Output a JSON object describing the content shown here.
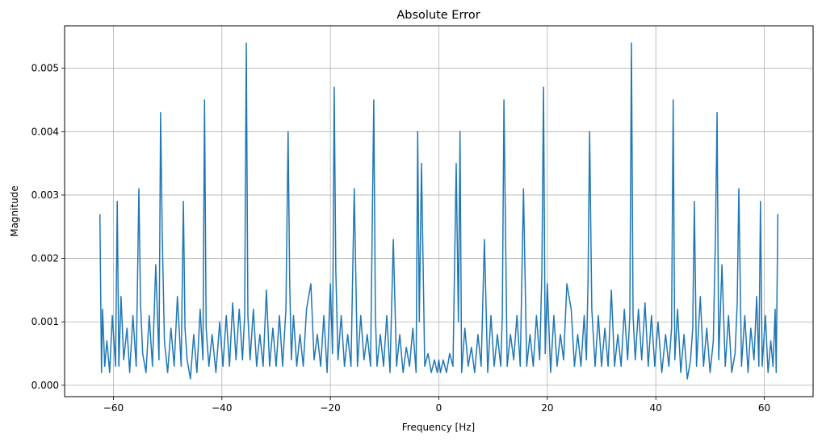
{
  "chart_data": {
    "type": "line",
    "title": "Absolute Error",
    "xlabel": "Frequency [Hz]",
    "ylabel": "Magnitude",
    "xlim": [
      -69,
      69
    ],
    "ylim": [
      -0.00018,
      0.00567
    ],
    "grid": true,
    "line_color": "#1f77b4",
    "x_ticks": [
      -60,
      -40,
      -20,
      0,
      20,
      40,
      60
    ],
    "x_tick_labels": [
      "−60",
      "−40",
      "−20",
      "0",
      "20",
      "40",
      "60"
    ],
    "y_ticks": [
      0.0,
      0.001,
      0.002,
      0.003,
      0.004,
      0.005
    ],
    "y_tick_labels": [
      "0.000",
      "0.001",
      "0.002",
      "0.003",
      "0.004",
      "0.005"
    ],
    "series": [
      {
        "x": [
          -62.5,
          -62.2,
          -62.0,
          -61.6,
          -61.2,
          -60.7,
          -60.2,
          -59.6,
          -59.3,
          -59.0,
          -58.6,
          -58.1,
          -57.5,
          -57.0,
          -56.4,
          -55.8,
          -55.3,
          -55.0,
          -54.6,
          -54.0,
          -53.4,
          -52.8,
          -52.2,
          -51.6,
          -51.3,
          -51.0,
          -50.6,
          -50.0,
          -49.4,
          -48.8,
          -48.2,
          -47.5,
          -47.1,
          -46.8,
          -46.4,
          -45.8,
          -45.2,
          -44.6,
          -44.0,
          -43.5,
          -43.2,
          -42.9,
          -42.4,
          -41.8,
          -41.1,
          -40.4,
          -39.8,
          -39.2,
          -38.6,
          -38.0,
          -37.4,
          -36.8,
          -36.2,
          -35.8,
          -35.5,
          -35.2,
          -34.8,
          -34.2,
          -33.6,
          -33.0,
          -32.4,
          -31.8,
          -31.2,
          -30.6,
          -30.0,
          -29.4,
          -28.8,
          -28.2,
          -27.8,
          -27.5,
          -27.2,
          -26.8,
          -26.2,
          -25.6,
          -25.0,
          -24.4,
          -23.6,
          -23.0,
          -22.4,
          -21.8,
          -21.2,
          -20.6,
          -20.0,
          -19.6,
          -19.3,
          -19.0,
          -18.6,
          -18.0,
          -17.4,
          -16.8,
          -16.2,
          -15.6,
          -15.0,
          -14.4,
          -13.8,
          -13.2,
          -12.6,
          -12.0,
          -11.7,
          -11.4,
          -10.8,
          -10.2,
          -9.6,
          -9.0,
          -8.4,
          -7.8,
          -7.2,
          -6.6,
          -6.0,
          -5.4,
          -4.8,
          -4.2,
          -3.9,
          -3.6,
          -3.2,
          -2.6,
          -2.0,
          -1.4,
          -0.8,
          -0.3,
          0.0,
          0.3,
          0.8,
          1.4,
          2.0,
          2.6,
          3.2,
          3.6,
          3.9,
          4.2,
          4.8,
          5.4,
          6.0,
          6.6,
          7.2,
          7.8,
          8.4,
          9.0,
          9.6,
          10.2,
          10.8,
          11.4,
          11.7,
          12.0,
          12.6,
          13.2,
          13.8,
          14.4,
          15.0,
          15.6,
          16.2,
          16.8,
          17.4,
          18.0,
          18.6,
          19.0,
          19.3,
          19.6,
          20.0,
          20.6,
          21.2,
          21.8,
          22.4,
          23.0,
          23.6,
          24.4,
          25.0,
          25.6,
          26.2,
          26.8,
          27.2,
          27.5,
          27.8,
          28.2,
          28.8,
          29.4,
          30.0,
          30.6,
          31.2,
          31.8,
          32.4,
          33.0,
          33.6,
          34.2,
          34.8,
          35.2,
          35.5,
          35.8,
          36.2,
          36.8,
          37.4,
          38.0,
          38.6,
          39.2,
          39.8,
          40.4,
          41.1,
          41.8,
          42.4,
          42.9,
          43.2,
          43.5,
          44.0,
          44.6,
          45.2,
          45.8,
          46.4,
          46.8,
          47.1,
          47.5,
          48.2,
          48.8,
          49.4,
          50.0,
          50.6,
          51.0,
          51.3,
          51.6,
          52.2,
          52.8,
          53.4,
          54.0,
          54.6,
          55.0,
          55.3,
          55.8,
          56.4,
          57.0,
          57.5,
          58.1,
          58.6,
          59.0,
          59.3,
          59.6,
          60.2,
          60.7,
          61.2,
          61.6,
          62.0,
          62.2,
          62.5
        ],
        "y": [
          0.0027,
          0.0002,
          0.0012,
          0.0003,
          0.0007,
          0.0002,
          0.0011,
          0.0003,
          0.0029,
          0.0003,
          0.0014,
          0.0004,
          0.0009,
          0.0002,
          0.0011,
          0.0003,
          0.0031,
          0.0013,
          0.0005,
          0.0002,
          0.0011,
          0.0003,
          0.0019,
          0.0004,
          0.0043,
          0.0024,
          0.0007,
          0.0002,
          0.0009,
          0.0003,
          0.0014,
          0.0003,
          0.0029,
          0.0009,
          0.0004,
          0.0001,
          0.0008,
          0.0002,
          0.0012,
          0.0004,
          0.0045,
          0.0009,
          0.0003,
          0.0008,
          0.0002,
          0.001,
          0.0003,
          0.0011,
          0.0003,
          0.0013,
          0.0004,
          0.0012,
          0.0004,
          0.0011,
          0.0054,
          0.0011,
          0.0004,
          0.0012,
          0.0003,
          0.0008,
          0.0003,
          0.0015,
          0.0003,
          0.0009,
          0.0003,
          0.0011,
          0.0003,
          0.0012,
          0.004,
          0.0016,
          0.0004,
          0.0011,
          0.0003,
          0.0008,
          0.0003,
          0.0012,
          0.0016,
          0.0004,
          0.0008,
          0.0003,
          0.0011,
          0.0002,
          0.0016,
          0.0005,
          0.0047,
          0.0018,
          0.0004,
          0.0011,
          0.0003,
          0.0008,
          0.0003,
          0.0031,
          0.0003,
          0.0011,
          0.0004,
          0.0008,
          0.0003,
          0.0045,
          0.0011,
          0.0003,
          0.0008,
          0.0003,
          0.0011,
          0.0002,
          0.0023,
          0.0003,
          0.0008,
          0.0002,
          0.0006,
          0.0003,
          0.0009,
          0.0002,
          0.004,
          0.001,
          0.0035,
          0.0003,
          0.0005,
          0.0002,
          0.0004,
          0.0002,
          0.0004,
          0.0002,
          0.0004,
          0.0002,
          0.0005,
          0.0003,
          0.0035,
          0.001,
          0.004,
          0.0002,
          0.0009,
          0.0003,
          0.0006,
          0.0002,
          0.0008,
          0.0003,
          0.0023,
          0.0002,
          0.0011,
          0.0003,
          0.0008,
          0.0003,
          0.0011,
          0.0045,
          0.0003,
          0.0008,
          0.0004,
          0.0011,
          0.0003,
          0.0031,
          0.0003,
          0.0008,
          0.0003,
          0.0011,
          0.0004,
          0.0018,
          0.0047,
          0.0005,
          0.0016,
          0.0002,
          0.0011,
          0.0003,
          0.0008,
          0.0004,
          0.0016,
          0.0012,
          0.0003,
          0.0008,
          0.0003,
          0.0011,
          0.0004,
          0.0016,
          0.004,
          0.0012,
          0.0003,
          0.0011,
          0.0003,
          0.0009,
          0.0003,
          0.0015,
          0.0003,
          0.0008,
          0.0003,
          0.0012,
          0.0004,
          0.0011,
          0.0054,
          0.0011,
          0.0004,
          0.0012,
          0.0004,
          0.0013,
          0.0003,
          0.0011,
          0.0003,
          0.001,
          0.0002,
          0.0008,
          0.0003,
          0.0009,
          0.0045,
          0.0004,
          0.0012,
          0.0002,
          0.0008,
          0.0001,
          0.0004,
          0.0009,
          0.0029,
          0.0003,
          0.0014,
          0.0003,
          0.0009,
          0.0002,
          0.0007,
          0.0024,
          0.0043,
          0.0004,
          0.0019,
          0.0003,
          0.0011,
          0.0002,
          0.0005,
          0.0013,
          0.0031,
          0.0003,
          0.0011,
          0.0002,
          0.0009,
          0.0004,
          0.0014,
          0.0003,
          0.0029,
          0.0003,
          0.0011,
          0.0002,
          0.0007,
          0.0003,
          0.0012,
          0.0002,
          0.0027
        ]
      }
    ]
  }
}
